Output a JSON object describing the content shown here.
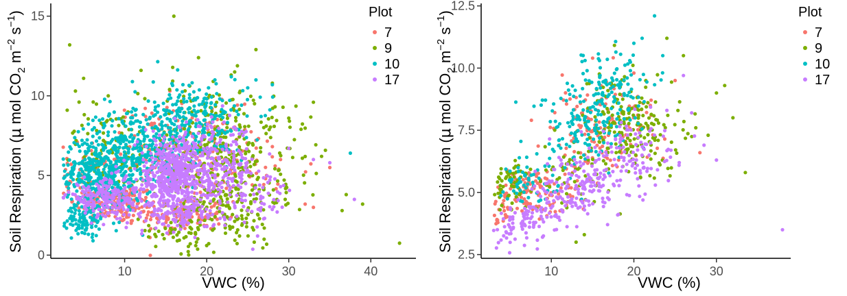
{
  "chart_data": [
    {
      "type": "scatter",
      "xlabel": "VWC (%)",
      "ylabel": "Soil Respiration (μ mol CO2 m-2 s-1)",
      "ylabel_parts": {
        "pre": "Soil Respiration (",
        "mu": "μ",
        "mid1": " mol CO",
        "sub2": "2",
        "mid2": " m",
        "sup1": "−2",
        "mid3": " s",
        "sup2": "−1",
        "post": ")"
      },
      "xlim": [
        1,
        45.5
      ],
      "ylim": [
        -0.2,
        15.8
      ],
      "xticks": [
        10,
        20,
        30,
        40
      ],
      "xtick_labels": [
        "10",
        "20",
        "30",
        "40"
      ],
      "yticks": [
        0,
        5,
        10,
        15
      ],
      "ytick_labels": [
        "0",
        "5",
        "10",
        "15"
      ],
      "grid": false,
      "legend_title": "Plot",
      "legend_position": "top-right",
      "series": [
        {
          "name": "7",
          "color": "#F8766D",
          "clusters": [
            {
              "cx": 9,
              "cy": 3.2,
              "sx": 2.5,
              "sy": 0.6,
              "n": 160
            },
            {
              "cx": 17,
              "cy": 2.5,
              "sx": 2.5,
              "sy": 0.6,
              "n": 120
            },
            {
              "cx": 16,
              "cy": 6.5,
              "sx": 4,
              "sy": 1.5,
              "n": 180
            },
            {
              "cx": 25,
              "cy": 5.5,
              "sx": 4,
              "sy": 1.2,
              "n": 50
            },
            {
              "cx": 5,
              "cy": 5,
              "sx": 1.5,
              "sy": 1,
              "n": 60
            }
          ],
          "points": [
            [
              35,
              5.5
            ],
            [
              33,
              3.0
            ],
            [
              32,
              3.2
            ],
            [
              26,
              7.2
            ],
            [
              29,
              6.0
            ]
          ]
        },
        {
          "name": "9",
          "color": "#7CAE00",
          "clusters": [
            {
              "cx": 20,
              "cy": 6.5,
              "sx": 4,
              "sy": 2.2,
              "n": 280
            },
            {
              "cx": 23,
              "cy": 3.5,
              "sx": 3,
              "sy": 1.5,
              "n": 150
            },
            {
              "cx": 8,
              "cy": 6.5,
              "sx": 3,
              "sy": 1.5,
              "n": 90
            },
            {
              "cx": 28,
              "cy": 6,
              "sx": 4,
              "sy": 2,
              "n": 60
            },
            {
              "cx": 17,
              "cy": 1.5,
              "sx": 2,
              "sy": 0.7,
              "n": 50
            }
          ],
          "points": [
            [
              3.3,
              13.2
            ],
            [
              16,
              15.0
            ],
            [
              5,
              11.1
            ],
            [
              12,
              11.6
            ],
            [
              19,
              12.4
            ],
            [
              26,
              12.9
            ],
            [
              3,
              9.1
            ],
            [
              4,
              10.3
            ],
            [
              8,
              10.0
            ],
            [
              33,
              9.6
            ],
            [
              37,
              3.8
            ],
            [
              39,
              3.2
            ],
            [
              43.5,
              0.75
            ],
            [
              36.5,
              2.8
            ],
            [
              28,
              10.8
            ],
            [
              24,
              10.2
            ],
            [
              30,
              8.6
            ],
            [
              31.5,
              7.9
            ],
            [
              34,
              6.2
            ],
            [
              27,
              1.0
            ],
            [
              24,
              1.2
            ],
            [
              20,
              0.6
            ]
          ]
        },
        {
          "name": "10",
          "color": "#00BFC4",
          "clusters": [
            {
              "cx": 7,
              "cy": 5,
              "sx": 2.5,
              "sy": 1.3,
              "n": 420
            },
            {
              "cx": 11,
              "cy": 6.8,
              "sx": 3,
              "sy": 1.2,
              "n": 220
            },
            {
              "cx": 18,
              "cy": 8.3,
              "sx": 3.5,
              "sy": 1.4,
              "n": 280
            },
            {
              "cx": 5,
              "cy": 2.2,
              "sx": 1,
              "sy": 0.5,
              "n": 70
            }
          ],
          "points": [
            [
              26,
              11.0
            ],
            [
              28,
              10.7
            ],
            [
              37.5,
              6.4
            ],
            [
              23,
              11.2
            ],
            [
              25,
              10.5
            ],
            [
              21,
              11.0
            ]
          ]
        },
        {
          "name": "17",
          "color": "#C77CFF",
          "clusters": [
            {
              "cx": 16,
              "cy": 5,
              "sx": 2.2,
              "sy": 1.2,
              "n": 520
            },
            {
              "cx": 8,
              "cy": 3.6,
              "sx": 2.5,
              "sy": 0.6,
              "n": 200
            },
            {
              "cx": 21,
              "cy": 5.8,
              "sx": 2.5,
              "sy": 1.2,
              "n": 200
            },
            {
              "cx": 25,
              "cy": 3.8,
              "sx": 3,
              "sy": 1,
              "n": 80
            },
            {
              "cx": 17,
              "cy": 2.5,
              "sx": 2,
              "sy": 0.5,
              "n": 100
            }
          ],
          "points": [
            [
              33,
              6.0
            ],
            [
              30,
              6.7
            ],
            [
              38,
              3.5
            ],
            [
              29,
              4.3
            ],
            [
              27,
              3.2
            ],
            [
              35,
              5.8
            ]
          ]
        }
      ]
    },
    {
      "type": "scatter",
      "xlabel": "VWC (%)",
      "ylabel": "Soil Respiration (μ mol CO2 m-2 s-1)",
      "ylabel_parts": {
        "pre": "Soil Respiration (",
        "mu": "μ",
        "mid1": " mol CO",
        "sub2": "2",
        "mid2": " m",
        "sup1": "−2",
        "mid3": " s",
        "sup2": "−1",
        "post": ")"
      },
      "xlim": [
        1.5,
        39
      ],
      "ylim": [
        2.35,
        12.6
      ],
      "xticks": [
        10,
        20,
        30
      ],
      "xtick_labels": [
        "10",
        "20",
        "30"
      ],
      "yticks": [
        2.5,
        5.0,
        7.5,
        10.0,
        12.5
      ],
      "ytick_labels": [
        "2.5",
        "5.0",
        "7.5",
        "10.0",
        "12.5"
      ],
      "grid": false,
      "legend_title": "Plot",
      "legend_position": "top-right",
      "series": [
        {
          "name": "7",
          "color": "#F8766D",
          "clusters": [
            {
              "cx": 8,
              "cy": 5.1,
              "sx": 2.5,
              "sy": 0.5,
              "n": 110
            },
            {
              "cx": 14,
              "cy": 7.3,
              "sx": 2,
              "sy": 1,
              "n": 90
            },
            {
              "cx": 19,
              "cy": 7.6,
              "sx": 2,
              "sy": 0.9,
              "n": 50
            },
            {
              "cx": 4,
              "cy": 4.2,
              "sx": 1,
              "sy": 0.4,
              "n": 30
            }
          ],
          "points": [
            [
              25,
              9.5
            ],
            [
              22,
              8.5
            ],
            [
              28,
              6.6
            ],
            [
              15,
              10.4
            ],
            [
              20,
              9.8
            ]
          ]
        },
        {
          "name": "9",
          "color": "#7CAE00",
          "clusters": [
            {
              "cx": 18,
              "cy": 7.8,
              "sx": 2.5,
              "sy": 1,
              "n": 140
            },
            {
              "cx": 22,
              "cy": 7.5,
              "sx": 3,
              "sy": 1.2,
              "n": 60
            },
            {
              "cx": 5,
              "cy": 5.3,
              "sx": 1.5,
              "sy": 0.5,
              "n": 60
            },
            {
              "cx": 12,
              "cy": 5.8,
              "sx": 2,
              "sy": 0.7,
              "n": 40
            }
          ],
          "points": [
            [
              24,
              11.2
            ],
            [
              26,
              10.5
            ],
            [
              30,
              9.0
            ],
            [
              31,
              9.3
            ],
            [
              32,
              8.0
            ],
            [
              33.5,
              5.8
            ],
            [
              13,
              3.0
            ],
            [
              14,
              3.3
            ],
            [
              29,
              7.3
            ],
            [
              27.5,
              7.6
            ]
          ]
        },
        {
          "name": "10",
          "color": "#00BFC4",
          "clusters": [
            {
              "cx": 14,
              "cy": 7.8,
              "sx": 3,
              "sy": 1,
              "n": 150
            },
            {
              "cx": 18,
              "cy": 9.3,
              "sx": 2,
              "sy": 0.8,
              "n": 80
            },
            {
              "cx": 7,
              "cy": 5.5,
              "sx": 2,
              "sy": 0.5,
              "n": 60
            }
          ],
          "points": [
            [
              22.5,
              12.1
            ],
            [
              21,
              11.2
            ],
            [
              20,
              11.0
            ],
            [
              23.5,
              10.5
            ],
            [
              19.5,
              10.3
            ]
          ]
        },
        {
          "name": "17",
          "color": "#C77CFF",
          "clusters": [
            {
              "cx": 14,
              "cy": 5.2,
              "sx": 2.5,
              "sy": 0.7,
              "n": 130
            },
            {
              "cx": 20,
              "cy": 6.5,
              "sx": 2.5,
              "sy": 0.8,
              "n": 100
            },
            {
              "cx": 6,
              "cy": 3.6,
              "sx": 1.5,
              "sy": 0.4,
              "n": 70
            },
            {
              "cx": 10,
              "cy": 4.5,
              "sx": 2,
              "sy": 0.5,
              "n": 50
            }
          ],
          "points": [
            [
              27,
              8.2
            ],
            [
              30,
              6.3
            ],
            [
              38,
              3.5
            ],
            [
              25.5,
              6.2
            ],
            [
              28.5,
              6.9
            ],
            [
              26,
              9.7
            ],
            [
              24,
              8.3
            ]
          ]
        }
      ]
    }
  ]
}
